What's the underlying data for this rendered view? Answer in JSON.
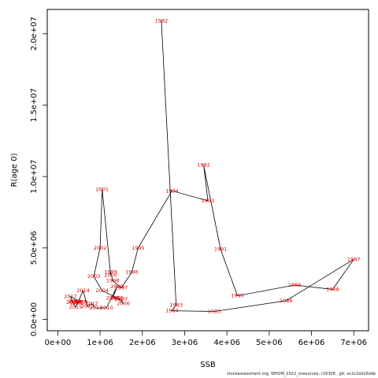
{
  "chart_data": {
    "type": "line",
    "title": "",
    "xlabel": "SSB",
    "ylabel": "R(age 0)",
    "xlim": [
      -250000,
      7350000
    ],
    "ylim": [
      -800000,
      21700000
    ],
    "grid": false,
    "x_ticks": [
      0,
      1000000,
      2000000,
      3000000,
      4000000,
      5000000,
      6000000,
      7000000
    ],
    "x_tick_labels": [
      "0e+00",
      "1e+06",
      "2e+06",
      "3e+06",
      "4e+06",
      "5e+06",
      "6e+06",
      "7e+06"
    ],
    "y_ticks": [
      0,
      5000000,
      10000000,
      15000000,
      20000000
    ],
    "y_tick_labels": [
      "0.0e+00",
      "5.0e+06",
      "1.0e+07",
      "1.5e+07",
      "2.0e+07"
    ],
    "line_color": "#000000",
    "label_color": "#e00000",
    "points": [
      {
        "year": "1982",
        "x": 2450000,
        "y": 20900000
      },
      {
        "year": "1983",
        "x": 2800000,
        "y": 1000000
      },
      {
        "year": "1984",
        "x": 2700000,
        "y": 600000
      },
      {
        "year": "1985",
        "x": 3700000,
        "y": 550000
      },
      {
        "year": "1986",
        "x": 5400000,
        "y": 1300000
      },
      {
        "year": "1987",
        "x": 7000000,
        "y": 4200000
      },
      {
        "year": "1988",
        "x": 6500000,
        "y": 2100000
      },
      {
        "year": "1989",
        "x": 5600000,
        "y": 2400000
      },
      {
        "year": "1990",
        "x": 4250000,
        "y": 1650000
      },
      {
        "year": "1991",
        "x": 3850000,
        "y": 4900000
      },
      {
        "year": "1992",
        "x": 3450000,
        "y": 10800000
      },
      {
        "year": "1993",
        "x": 3550000,
        "y": 8300000
      },
      {
        "year": "1994",
        "x": 2700000,
        "y": 9000000
      },
      {
        "year": "1995",
        "x": 1900000,
        "y": 5000000
      },
      {
        "year": "1996",
        "x": 1750000,
        "y": 3300000
      },
      {
        "year": "1997",
        "x": 1500000,
        "y": 2200000
      },
      {
        "year": "1998",
        "x": 1300000,
        "y": 2700000
      },
      {
        "year": "1999",
        "x": 1250000,
        "y": 3300000
      },
      {
        "year": "2000",
        "x": 1250000,
        "y": 3100000
      },
      {
        "year": "2001",
        "x": 1050000,
        "y": 9100000
      },
      {
        "year": "2002",
        "x": 1000000,
        "y": 5000000
      },
      {
        "year": "2003",
        "x": 850000,
        "y": 3000000
      },
      {
        "year": "2004",
        "x": 1050000,
        "y": 2000000
      },
      {
        "year": "2005",
        "x": 1400000,
        "y": 1500000
      },
      {
        "year": "2006",
        "x": 1550000,
        "y": 1100000
      },
      {
        "year": "2007",
        "x": 1500000,
        "y": 1400000
      },
      {
        "year": "2008",
        "x": 1300000,
        "y": 1500000
      },
      {
        "year": "2009",
        "x": 1400000,
        "y": 2300000
      },
      {
        "year": "2010",
        "x": 1150000,
        "y": 800000
      },
      {
        "year": "2011",
        "x": 900000,
        "y": 800000
      },
      {
        "year": "2012",
        "x": 800000,
        "y": 1100000
      },
      {
        "year": "2013",
        "x": 700000,
        "y": 900000
      },
      {
        "year": "2014",
        "x": 600000,
        "y": 2000000
      },
      {
        "year": "2015",
        "x": 420000,
        "y": 850000
      },
      {
        "year": "2016",
        "x": 350000,
        "y": 1200000
      },
      {
        "year": "2017",
        "x": 300000,
        "y": 1600000
      },
      {
        "year": "2018",
        "x": 550000,
        "y": 1200000
      },
      {
        "year": "2019",
        "x": 400000,
        "y": 1250000
      },
      {
        "year": "2020",
        "x": 500000,
        "y": 1200000
      },
      {
        "year": "2021",
        "x": 450000,
        "y": 1150000
      },
      {
        "year": "2022",
        "x": 420000,
        "y": 1250000
      }
    ]
  },
  "footer": "stockassessment.org, WHOM_2022_onesurvey, r16306 , git: ec2c2a0c6dde"
}
